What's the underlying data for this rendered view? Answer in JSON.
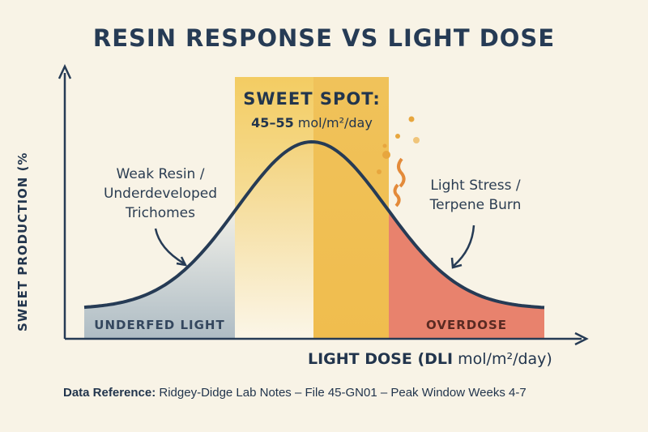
{
  "chart_data": {
    "type": "area",
    "title": "RESIN RESPONSE VS LIGHT DOSE",
    "xlabel_bold": "LIGHT DOSE (DLI",
    "xlabel_rest": " mol/m²/day)",
    "ylabel": "SWEET PRODUCTION (%",
    "grid": false,
    "zones": [
      {
        "label": "UNDERFED LIGHT",
        "color": "#b7c3c9"
      },
      {
        "label": "SWEET SPOT:",
        "range": "45–55",
        "unit": " mol/m²/day",
        "color": "#f2c65a"
      },
      {
        "label": "OVERDOSE",
        "color": "#e8826d"
      }
    ],
    "annotations": {
      "weak": [
        "Weak Resin /",
        "Underdeveloped",
        "Trichomes"
      ],
      "stress": [
        "Light Stress /",
        "Terpene Burn"
      ]
    },
    "curve": "bell-shaped response peaking within the sweet spot"
  },
  "footer": {
    "label": "Data Reference:",
    "text": " Ridgey-Didge Lab Notes – File 45-GN01 – Peak Window Weeks 4-7"
  },
  "colors": {
    "ink": "#263b55",
    "background": "#f8f3e6",
    "sweet_dark": "#eebb4d"
  }
}
